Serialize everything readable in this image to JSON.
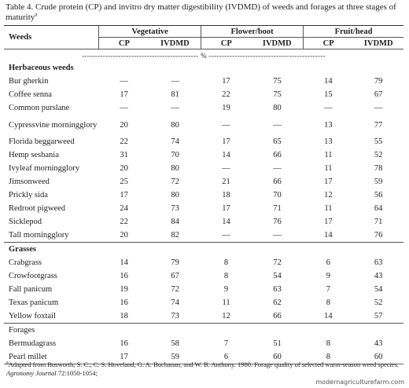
{
  "caption": {
    "text": "Table 4. Crude protein (CP) and invitro dry matter digestibility (IVDMD) of weeds and forages at three stages of maturity",
    "mark": "a"
  },
  "headers": {
    "weeds": "Weeds",
    "groups": [
      "Vegetative",
      "Flower/boot",
      "Fruit/head"
    ],
    "cp": "CP",
    "ivdmd": "IVDMD",
    "percent_row": "--------------------------------------------- % ---------------------------------------------"
  },
  "sections": [
    {
      "title": "Herbaceous weeds",
      "rows": [
        {
          "name": "Bur gherkin",
          "v": [
            "—",
            "—",
            "17",
            "75",
            "14",
            "79"
          ]
        },
        {
          "name": "Coffee senna",
          "v": [
            "17",
            "81",
            "22",
            "75",
            "15",
            "67"
          ]
        },
        {
          "name": "Common purslane",
          "v": [
            "—",
            "—",
            "19",
            "80",
            "—",
            "—"
          ]
        },
        {
          "name": "Cypressvine morningglory",
          "v": [
            "20",
            "80",
            "—",
            "—",
            "13",
            "77"
          ]
        },
        {
          "name": "Florida beggarweed",
          "v": [
            "22",
            "74",
            "17",
            "65",
            "13",
            "55"
          ]
        },
        {
          "name": "Hemp sesbania",
          "v": [
            "31",
            "70",
            "14",
            "66",
            "11",
            "52"
          ]
        },
        {
          "name": "Ivyleaf morningglory",
          "v": [
            "20",
            "80",
            "—",
            "—",
            "11",
            "78"
          ]
        },
        {
          "name": "Jimsonweed",
          "v": [
            "25",
            "72",
            "21",
            "66",
            "17",
            "59"
          ]
        },
        {
          "name": "Prickly sida",
          "v": [
            "17",
            "80",
            "18",
            "70",
            "12",
            "56"
          ]
        },
        {
          "name": "Redroot pigweed",
          "v": [
            "24",
            "73",
            "17",
            "71",
            "11",
            "64"
          ]
        },
        {
          "name": "Sicklepod",
          "v": [
            "22",
            "84",
            "14",
            "76",
            "17",
            "71"
          ]
        },
        {
          "name": "Tall morningglory",
          "v": [
            "20",
            "82",
            "—",
            "—",
            "14",
            "76"
          ]
        }
      ]
    },
    {
      "title": "Grasses",
      "rows": [
        {
          "name": "Crabgrass",
          "v": [
            "14",
            "79",
            "8",
            "72",
            "6",
            "63"
          ]
        },
        {
          "name": "Crowfootgrass",
          "v": [
            "16",
            "67",
            "8",
            "54",
            "9",
            "43"
          ]
        },
        {
          "name": "Fall panicum",
          "v": [
            "19",
            "72",
            "9",
            "63",
            "7",
            "54"
          ]
        },
        {
          "name": "Texas panicum",
          "v": [
            "16",
            "74",
            "11",
            "62",
            "8",
            "52"
          ]
        },
        {
          "name": "Yellow foxtail",
          "v": [
            "18",
            "73",
            "12",
            "66",
            "14",
            "57"
          ]
        }
      ]
    },
    {
      "title": "Forages",
      "rows": [
        {
          "name": "Bermudagrass",
          "v": [
            "16",
            "58",
            "7",
            "51",
            "8",
            "43"
          ]
        },
        {
          "name": "Pearl millet",
          "v": [
            "17",
            "59",
            "6",
            "60",
            "8",
            "60"
          ]
        }
      ]
    }
  ],
  "footnote": {
    "mark": "a",
    "text_1": "Adapted from Bosworth, S. C., C. S. Hoveland, G. A. Buchanan, and W. B. Anthony. 1980. Forage quality of selected warm-season weed species.",
    "journal": "Agronomy Journal",
    "text_2": "72:1050-1054;"
  },
  "watermark": "modernagriculturefarm.com"
}
